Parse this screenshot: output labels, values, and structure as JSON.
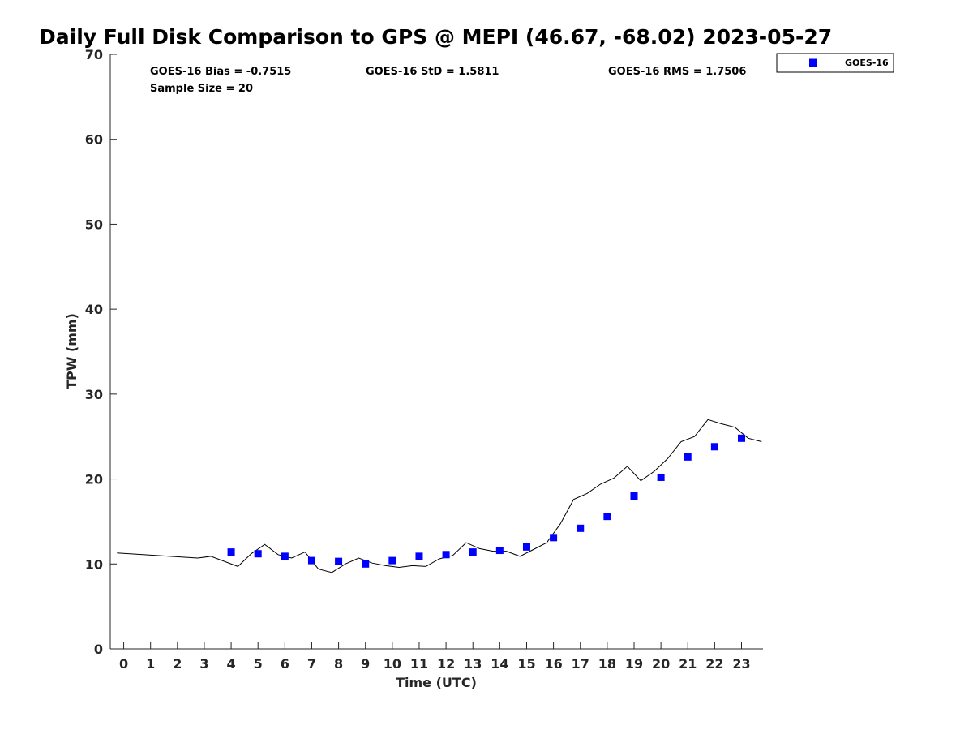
{
  "chart_data": {
    "type": "scatter",
    "title": "Daily Full Disk Comparison to GPS @ MEPI (46.67, -68.02) 2023-05-27",
    "xlabel": "Time (UTC)",
    "ylabel": "TPW (mm)",
    "xlim": [
      -0.5,
      23.8
    ],
    "ylim": [
      0,
      70
    ],
    "x_ticks": [
      0,
      1,
      2,
      3,
      4,
      5,
      6,
      7,
      8,
      9,
      10,
      11,
      12,
      13,
      14,
      15,
      16,
      17,
      18,
      19,
      20,
      21,
      22,
      23
    ],
    "y_ticks": [
      0,
      10,
      20,
      30,
      40,
      50,
      60,
      70
    ],
    "grid": false,
    "legend_position": "top-right",
    "stats": {
      "bias": "GOES-16 Bias = -0.7515",
      "std": "GOES-16 StD = 1.5811",
      "rms": "GOES-16 RMS = 1.7506",
      "sample_size": "Sample Size = 20"
    },
    "series": [
      {
        "name": "GOES-16",
        "kind": "scatter",
        "color": "#0000ff",
        "x": [
          4,
          5,
          6,
          7,
          8,
          9,
          10,
          11,
          12,
          13,
          14,
          15,
          16,
          17,
          18,
          19,
          20,
          21,
          22,
          23
        ],
        "y": [
          11.4,
          11.2,
          10.9,
          10.4,
          10.3,
          10.0,
          10.4,
          10.9,
          11.1,
          11.4,
          11.6,
          12.0,
          13.1,
          14.2,
          15.6,
          18.0,
          20.2,
          22.6,
          23.8,
          24.8
        ]
      },
      {
        "kind": "line",
        "color": "#000000",
        "x": [
          -0.25,
          2.75,
          3.25,
          4.25,
          4.75,
          5.25,
          5.75,
          6.25,
          6.75,
          7.25,
          7.75,
          8.25,
          8.75,
          9.25,
          9.75,
          10.25,
          10.75,
          11.25,
          11.75,
          12.25,
          12.75,
          13.25,
          13.75,
          14.25,
          14.75,
          15.25,
          15.75,
          16.25,
          16.75,
          17.25,
          17.75,
          18.25,
          18.75,
          19.25,
          19.75,
          20.25,
          20.75,
          21.25,
          21.75,
          22.25,
          22.75,
          23.25,
          23.75
        ],
        "y": [
          11.3,
          10.7,
          10.9,
          9.7,
          11.2,
          12.3,
          11.1,
          10.7,
          11.4,
          9.4,
          9.0,
          10.0,
          10.7,
          10.1,
          9.8,
          9.6,
          9.8,
          9.7,
          10.6,
          11.0,
          12.5,
          11.8,
          11.5,
          11.5,
          10.9,
          11.7,
          12.5,
          14.7,
          17.6,
          18.3,
          19.4,
          20.1,
          21.5,
          19.8,
          20.9,
          22.4,
          24.4,
          25.0,
          27.0,
          26.5,
          26.1,
          24.8,
          24.4
        ]
      }
    ]
  }
}
